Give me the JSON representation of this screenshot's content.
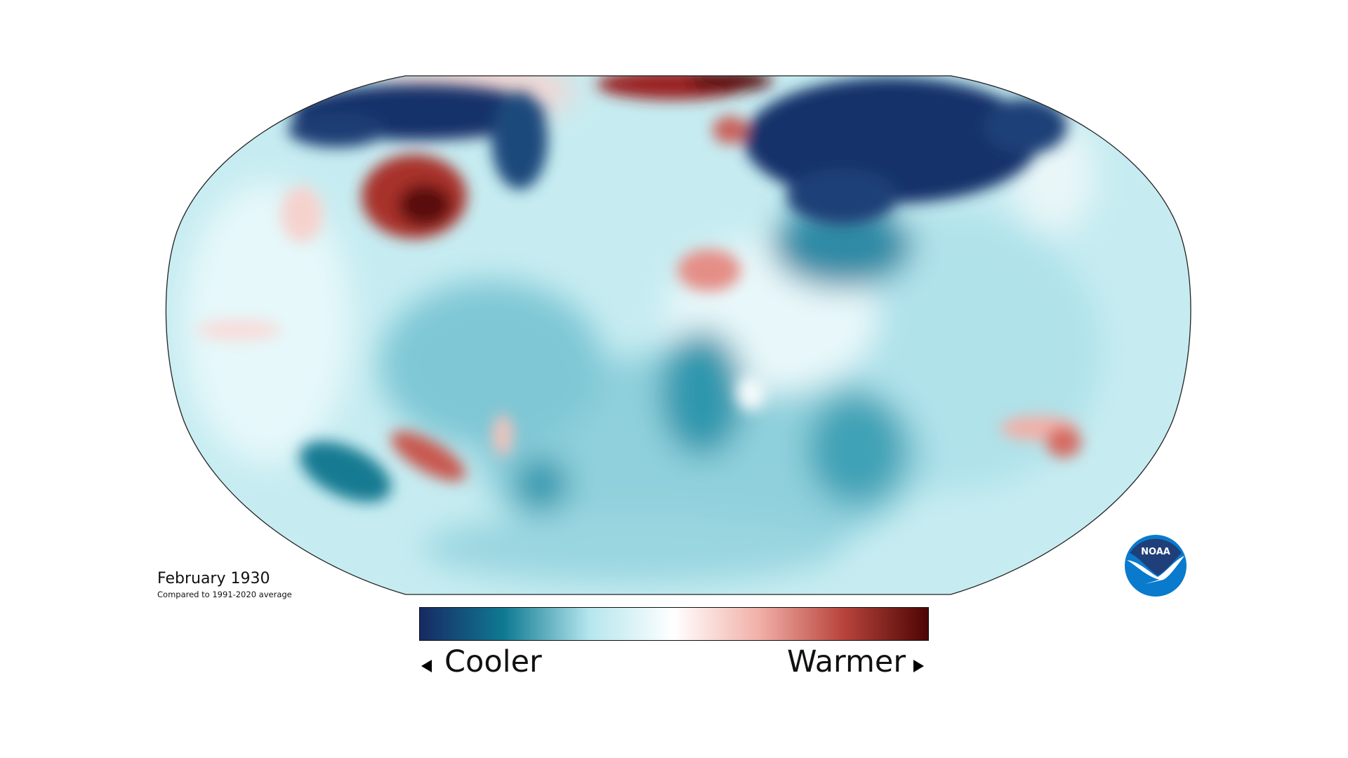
{
  "map": {
    "title": "February 1930",
    "subtitle": "Compared to 1991-2020 average",
    "projection": "Robinson",
    "variable": "temperature anomaly"
  },
  "legend": {
    "cooler_label": "Cooler",
    "warmer_label": "Warmer",
    "colors": [
      "#172a63",
      "#0f7a92",
      "#b5e6ee",
      "#ffffff",
      "#f2b0a8",
      "#b8443c",
      "#4d0505"
    ]
  },
  "logo": {
    "text": "NOAA",
    "dark": "#1f3f7a",
    "light": "#0a7acc"
  }
}
